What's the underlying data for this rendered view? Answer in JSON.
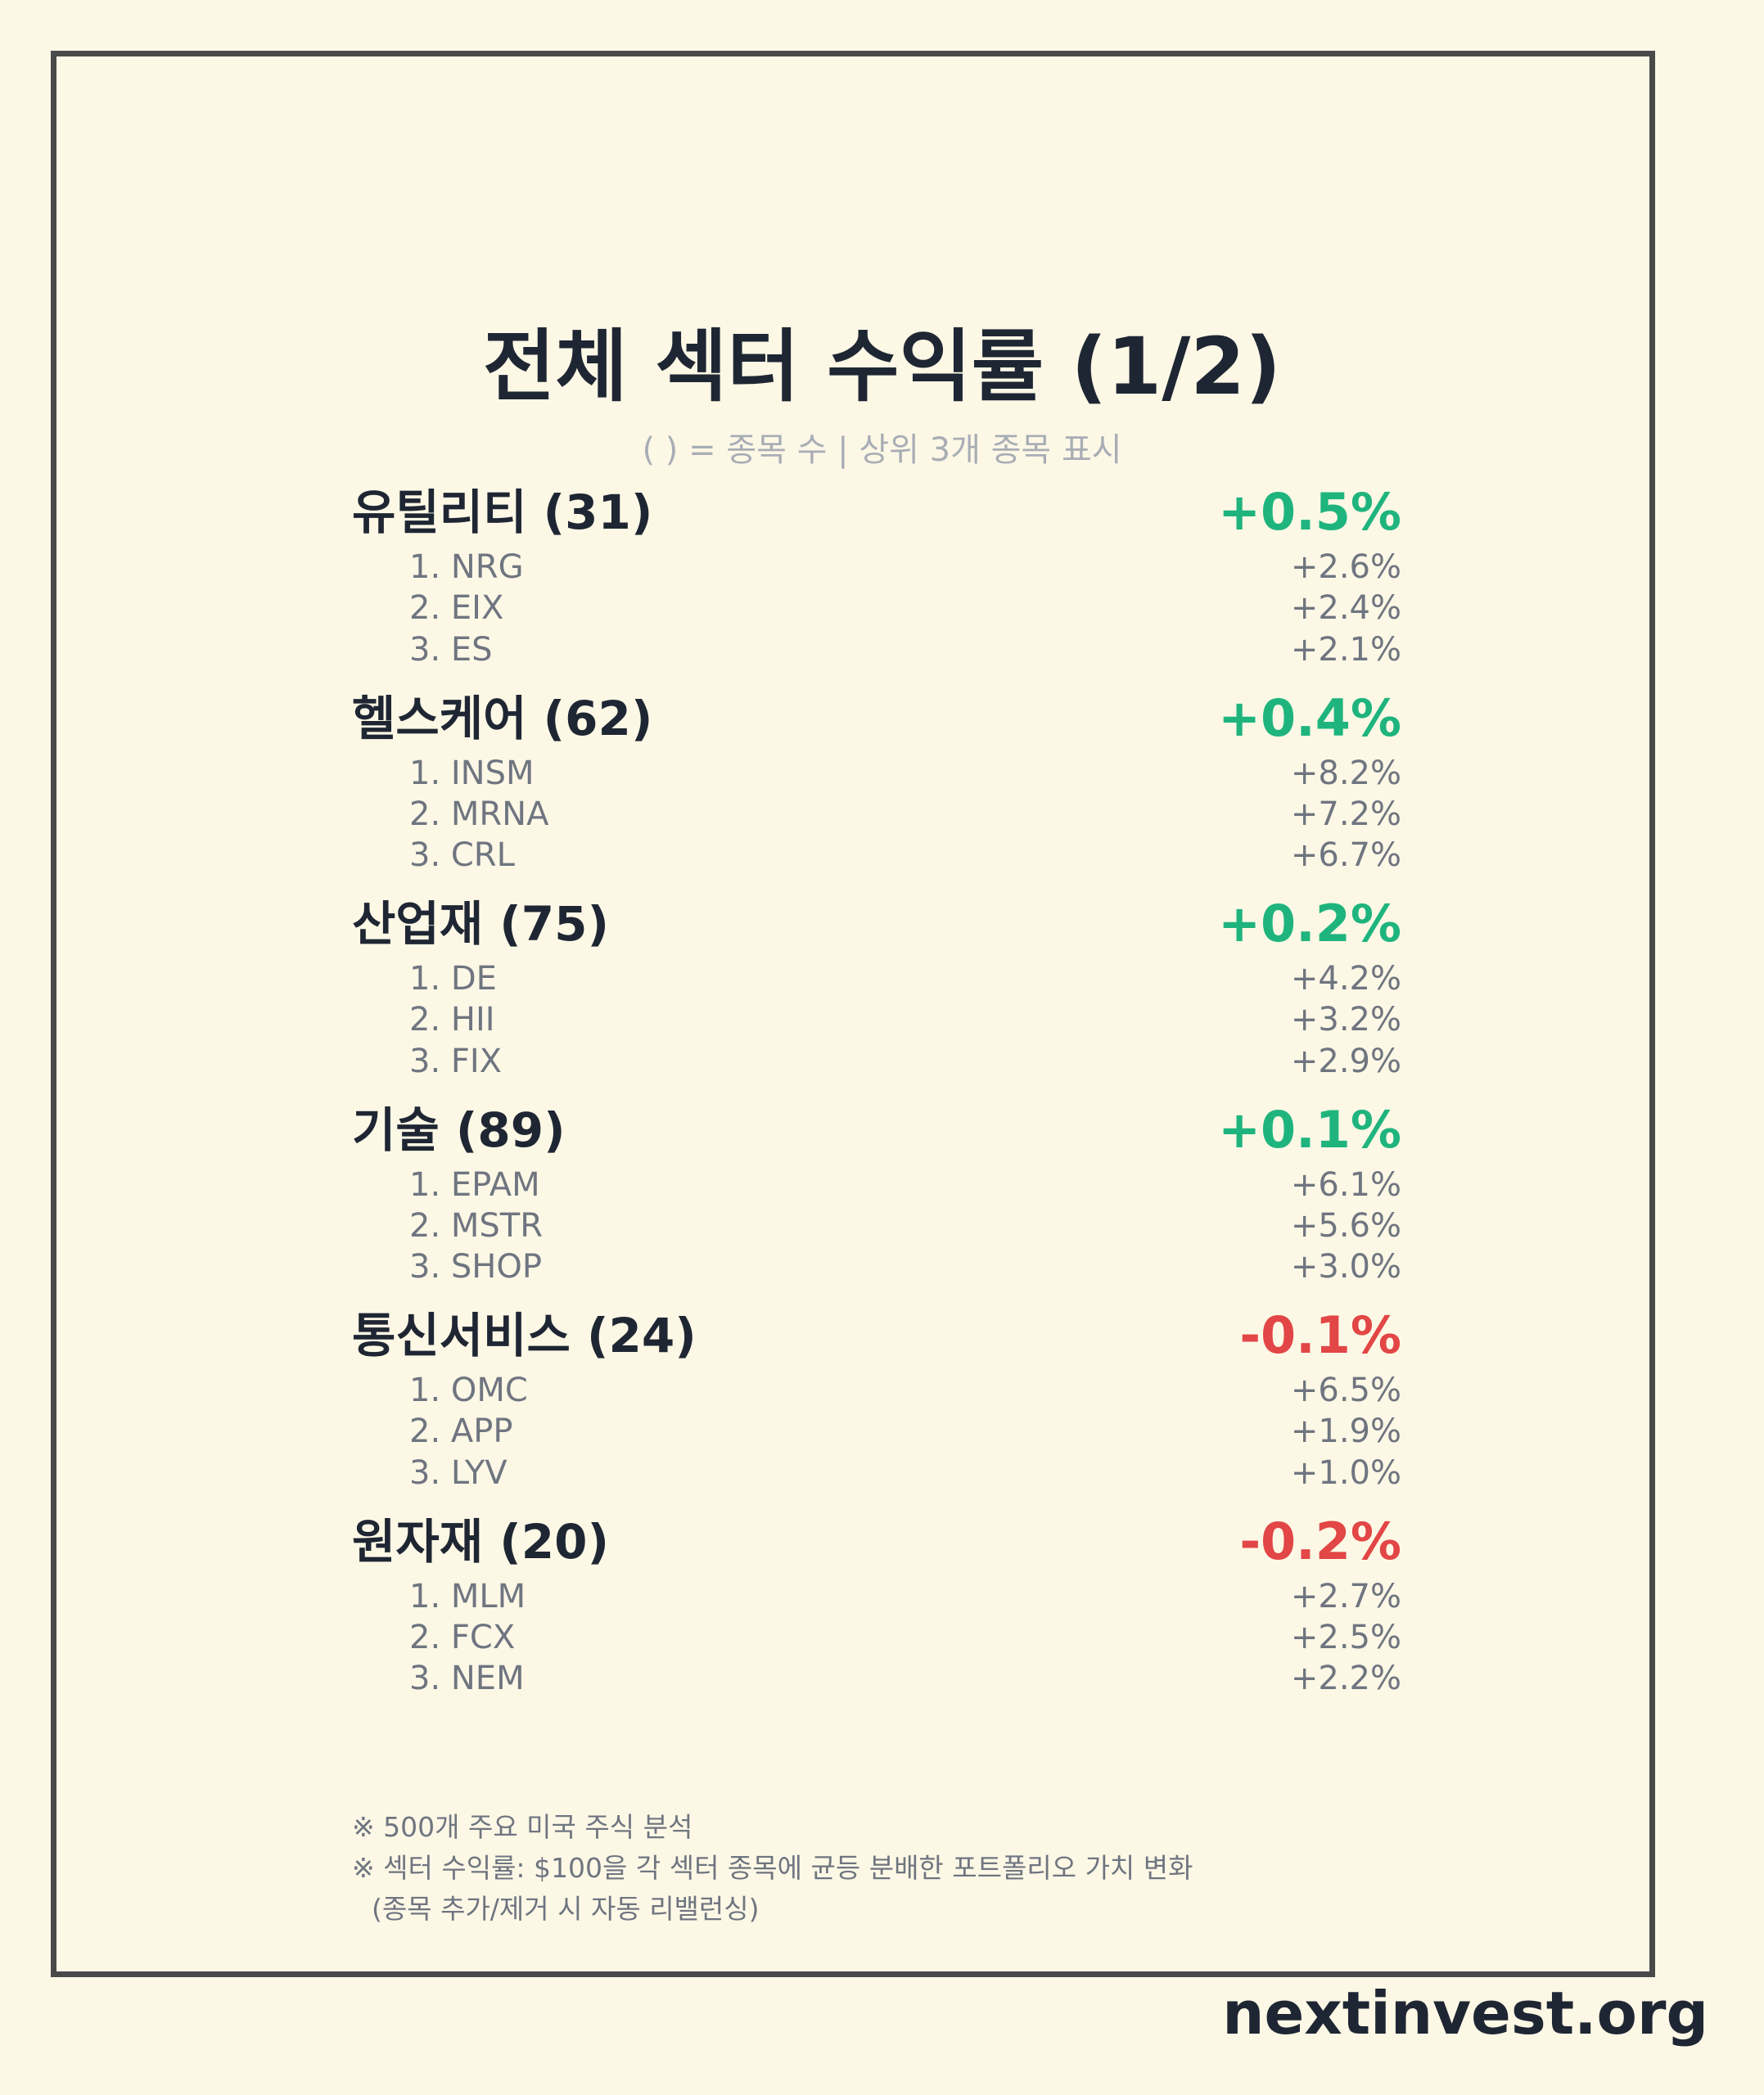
{
  "title": "전체 섹터 수익률 (1/2)",
  "subtitle": "( ) = 종목 수 | 상위 3개 종목 표시",
  "colors": {
    "positive": "#1fb47e",
    "negative": "#e24646",
    "background": "#fdf8e6",
    "frame": "#4a4a4a"
  },
  "sectors": [
    {
      "name": "유틸리티 (31)",
      "return": "+0.5%",
      "direction": "positive",
      "stocks": [
        {
          "name": "1. NRG",
          "return": "+2.6%"
        },
        {
          "name": "2. EIX",
          "return": "+2.4%"
        },
        {
          "name": "3. ES",
          "return": "+2.1%"
        }
      ]
    },
    {
      "name": "헬스케어 (62)",
      "return": "+0.4%",
      "direction": "positive",
      "stocks": [
        {
          "name": "1. INSM",
          "return": "+8.2%"
        },
        {
          "name": "2. MRNA",
          "return": "+7.2%"
        },
        {
          "name": "3. CRL",
          "return": "+6.7%"
        }
      ]
    },
    {
      "name": "산업재 (75)",
      "return": "+0.2%",
      "direction": "positive",
      "stocks": [
        {
          "name": "1. DE",
          "return": "+4.2%"
        },
        {
          "name": "2. HII",
          "return": "+3.2%"
        },
        {
          "name": "3. FIX",
          "return": "+2.9%"
        }
      ]
    },
    {
      "name": "기술 (89)",
      "return": "+0.1%",
      "direction": "positive",
      "stocks": [
        {
          "name": "1. EPAM",
          "return": "+6.1%"
        },
        {
          "name": "2. MSTR",
          "return": "+5.6%"
        },
        {
          "name": "3. SHOP",
          "return": "+3.0%"
        }
      ]
    },
    {
      "name": "통신서비스 (24)",
      "return": "-0.1%",
      "direction": "negative",
      "stocks": [
        {
          "name": "1. OMC",
          "return": "+6.5%"
        },
        {
          "name": "2. APP",
          "return": "+1.9%"
        },
        {
          "name": "3. LYV",
          "return": "+1.0%"
        }
      ]
    },
    {
      "name": "원자재 (20)",
      "return": "-0.2%",
      "direction": "negative",
      "stocks": [
        {
          "name": "1. MLM",
          "return": "+2.7%"
        },
        {
          "name": "2. FCX",
          "return": "+2.5%"
        },
        {
          "name": "3. NEM",
          "return": "+2.2%"
        }
      ]
    }
  ],
  "notes": [
    "※ 500개 주요 미국 주식 분석",
    "※ 섹터 수익률: $100을 각 섹터 종목에 균등 분배한 포트폴리오 가치 변화",
    "(종목 추가/제거 시 자동 리밸런싱)"
  ],
  "brand": "nextinvest.org"
}
